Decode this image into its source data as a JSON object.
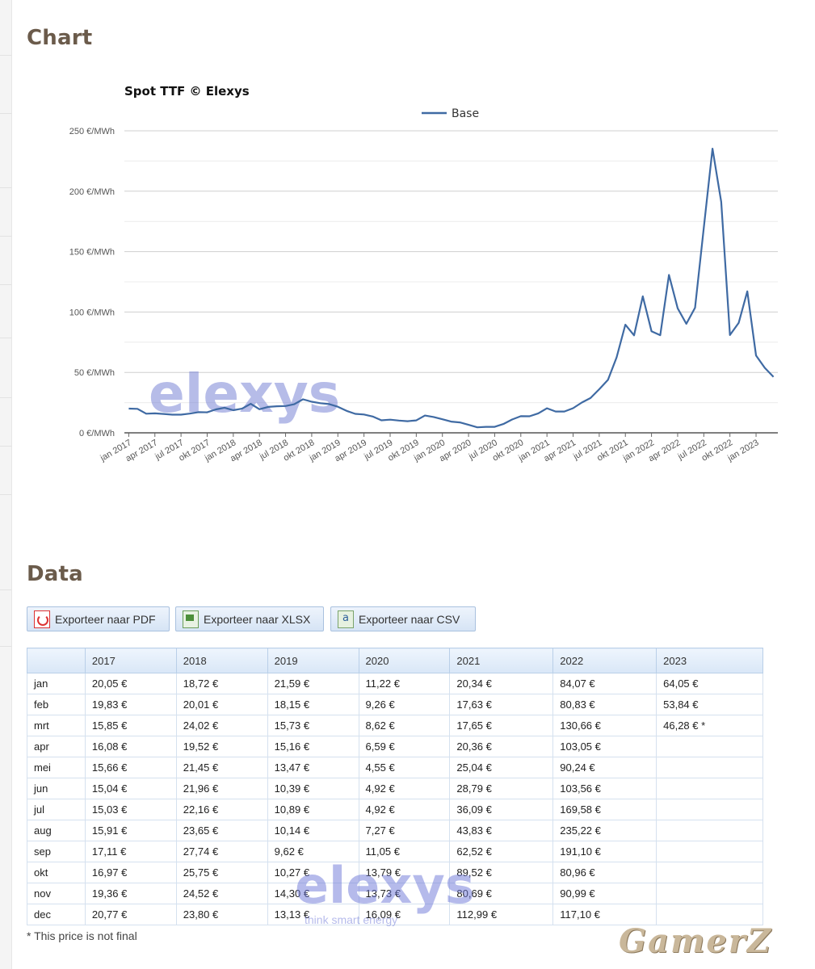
{
  "headings": {
    "chart": "Chart",
    "data": "Data"
  },
  "chart_data": {
    "type": "line",
    "title": "Spot TTF © Elexys",
    "legend": "top-center",
    "ylim": [
      0,
      250
    ],
    "y_ticks": [
      "0 €/MWh",
      "50 €/MWh",
      "100 €/MWh",
      "150 €/MWh",
      "200 €/MWh",
      "250 €/MWh"
    ],
    "x_ticks": [
      "jan 2017",
      "apr 2017",
      "jul 2017",
      "okt 2017",
      "jan 2018",
      "apr 2018",
      "jul 2018",
      "okt 2018",
      "jan 2019",
      "apr 2019",
      "jul 2019",
      "okt 2019",
      "jan 2020",
      "apr 2020",
      "jul 2020",
      "okt 2020",
      "jan 2021",
      "apr 2021",
      "jul 2021",
      "okt 2021",
      "jan 2022",
      "apr 2022",
      "jul 2022",
      "okt 2022",
      "jan 2023"
    ],
    "series": [
      {
        "name": "Base",
        "color": "#3f6aa3",
        "values": [
          20.05,
          19.83,
          15.85,
          16.08,
          15.66,
          15.04,
          15.03,
          15.91,
          17.11,
          16.97,
          19.36,
          20.77,
          18.72,
          20.01,
          24.02,
          19.52,
          21.45,
          21.96,
          22.16,
          23.65,
          27.74,
          25.75,
          24.52,
          23.8,
          21.59,
          18.15,
          15.73,
          15.16,
          13.47,
          10.39,
          10.89,
          10.14,
          9.62,
          10.27,
          14.3,
          13.13,
          11.22,
          9.26,
          8.62,
          6.59,
          4.55,
          4.92,
          4.92,
          7.27,
          11.05,
          13.79,
          13.73,
          16.09,
          20.34,
          17.63,
          17.65,
          20.36,
          25.04,
          28.79,
          36.09,
          43.83,
          62.52,
          89.52,
          80.69,
          112.99,
          84.07,
          80.83,
          130.66,
          103.05,
          90.24,
          103.56,
          169.58,
          235.22,
          191.1,
          80.96,
          90.99,
          117.1,
          64.05,
          53.84,
          46.28
        ]
      }
    ],
    "grid": true,
    "watermark": "elexys"
  },
  "export": {
    "pdf": "Exporteer naar PDF",
    "xlsx": "Exporteer naar XLSX",
    "csv": "Exporteer naar CSV"
  },
  "table": {
    "columns": [
      "",
      "2017",
      "2018",
      "2019",
      "2020",
      "2021",
      "2022",
      "2023"
    ],
    "rows": [
      [
        "jan",
        "20,05 €",
        "18,72 €",
        "21,59 €",
        "11,22 €",
        "20,34 €",
        "84,07 €",
        "64,05 €"
      ],
      [
        "feb",
        "19,83 €",
        "20,01 €",
        "18,15 €",
        "9,26 €",
        "17,63 €",
        "80,83 €",
        "53,84 €"
      ],
      [
        "mrt",
        "15,85 €",
        "24,02 €",
        "15,73 €",
        "8,62 €",
        "17,65 €",
        "130,66 €",
        "46,28 € *"
      ],
      [
        "apr",
        "16,08 €",
        "19,52 €",
        "15,16 €",
        "6,59 €",
        "20,36 €",
        "103,05 €",
        ""
      ],
      [
        "mei",
        "15,66 €",
        "21,45 €",
        "13,47 €",
        "4,55 €",
        "25,04 €",
        "90,24 €",
        ""
      ],
      [
        "jun",
        "15,04 €",
        "21,96 €",
        "10,39 €",
        "4,92 €",
        "28,79 €",
        "103,56 €",
        ""
      ],
      [
        "jul",
        "15,03 €",
        "22,16 €",
        "10,89 €",
        "4,92 €",
        "36,09 €",
        "169,58 €",
        ""
      ],
      [
        "aug",
        "15,91 €",
        "23,65 €",
        "10,14 €",
        "7,27 €",
        "43,83 €",
        "235,22 €",
        ""
      ],
      [
        "sep",
        "17,11 €",
        "27,74 €",
        "9,62 €",
        "11,05 €",
        "62,52 €",
        "191,10 €",
        ""
      ],
      [
        "okt",
        "16,97 €",
        "25,75 €",
        "10,27 €",
        "13,79 €",
        "89,52 €",
        "80,96 €",
        ""
      ],
      [
        "nov",
        "19,36 €",
        "24,52 €",
        "14,30 €",
        "13,73 €",
        "80,69 €",
        "90,99 €",
        ""
      ],
      [
        "dec",
        "20,77 €",
        "23,80 €",
        "13,13 €",
        "16,09 €",
        "112,99 €",
        "117,10 €",
        ""
      ]
    ]
  },
  "footnote": "* This price is not final",
  "watermark": {
    "brand": "elexys",
    "tagline": "think smart energy"
  },
  "corner_logo": "GamerZ"
}
